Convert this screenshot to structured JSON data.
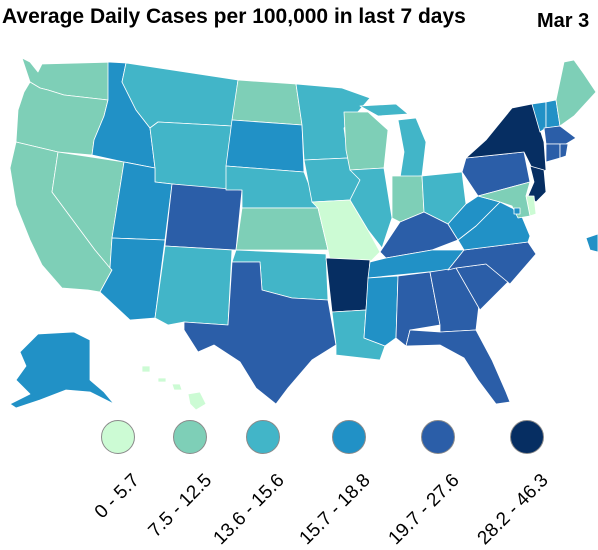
{
  "title": "Average Daily Cases per 100,000 in last 7 days",
  "date": "Mar 3",
  "legend": [
    {
      "range": "0 - 5.7",
      "color": "#ccfbd4"
    },
    {
      "range": "7.5 - 12.5",
      "color": "#7ecfb7"
    },
    {
      "range": "13.6 - 15.6",
      "color": "#42b5c8"
    },
    {
      "range": "15.7 - 18.8",
      "color": "#2191c6"
    },
    {
      "range": "19.7 - 27.6",
      "color": "#2b5ea8"
    },
    {
      "range": "28.2 - 46.3",
      "color": "#062e62"
    }
  ],
  "states": [
    {
      "abbr": "WA",
      "bin": 1
    },
    {
      "abbr": "OR",
      "bin": 1
    },
    {
      "abbr": "CA",
      "bin": 1
    },
    {
      "abbr": "NV",
      "bin": 1
    },
    {
      "abbr": "ID",
      "bin": 3
    },
    {
      "abbr": "MT",
      "bin": 2
    },
    {
      "abbr": "WY",
      "bin": 2
    },
    {
      "abbr": "UT",
      "bin": 3
    },
    {
      "abbr": "AZ",
      "bin": 3
    },
    {
      "abbr": "CO",
      "bin": 4
    },
    {
      "abbr": "NM",
      "bin": 2
    },
    {
      "abbr": "ND",
      "bin": 1
    },
    {
      "abbr": "SD",
      "bin": 3
    },
    {
      "abbr": "NE",
      "bin": 2
    },
    {
      "abbr": "KS",
      "bin": 1
    },
    {
      "abbr": "OK",
      "bin": 2
    },
    {
      "abbr": "TX",
      "bin": 4
    },
    {
      "abbr": "MN",
      "bin": 2
    },
    {
      "abbr": "IA",
      "bin": 2
    },
    {
      "abbr": "MO",
      "bin": 0
    },
    {
      "abbr": "AR",
      "bin": 5
    },
    {
      "abbr": "LA",
      "bin": 2
    },
    {
      "abbr": "WI",
      "bin": 1
    },
    {
      "abbr": "IL",
      "bin": 2
    },
    {
      "abbr": "MI",
      "bin": 2
    },
    {
      "abbr": "IN",
      "bin": 1
    },
    {
      "abbr": "OH",
      "bin": 2
    },
    {
      "abbr": "KY",
      "bin": 4
    },
    {
      "abbr": "TN",
      "bin": 3
    },
    {
      "abbr": "MS",
      "bin": 3
    },
    {
      "abbr": "AL",
      "bin": 4
    },
    {
      "abbr": "GA",
      "bin": 4
    },
    {
      "abbr": "FL",
      "bin": 4
    },
    {
      "abbr": "SC",
      "bin": 4
    },
    {
      "abbr": "NC",
      "bin": 4
    },
    {
      "abbr": "VA",
      "bin": 3
    },
    {
      "abbr": "WV",
      "bin": 3
    },
    {
      "abbr": "PA",
      "bin": 4
    },
    {
      "abbr": "NY",
      "bin": 5
    },
    {
      "abbr": "VT",
      "bin": 3
    },
    {
      "abbr": "NH",
      "bin": 3
    },
    {
      "abbr": "ME",
      "bin": 1
    },
    {
      "abbr": "MA",
      "bin": 4
    },
    {
      "abbr": "CT",
      "bin": 4
    },
    {
      "abbr": "RI",
      "bin": 4
    },
    {
      "abbr": "NJ",
      "bin": 5
    },
    {
      "abbr": "DE",
      "bin": 0
    },
    {
      "abbr": "MD",
      "bin": 1
    },
    {
      "abbr": "DC",
      "bin": 3
    },
    {
      "abbr": "AK",
      "bin": 3
    },
    {
      "abbr": "HI",
      "bin": 0
    },
    {
      "abbr": "PR",
      "bin": 3
    }
  ]
}
